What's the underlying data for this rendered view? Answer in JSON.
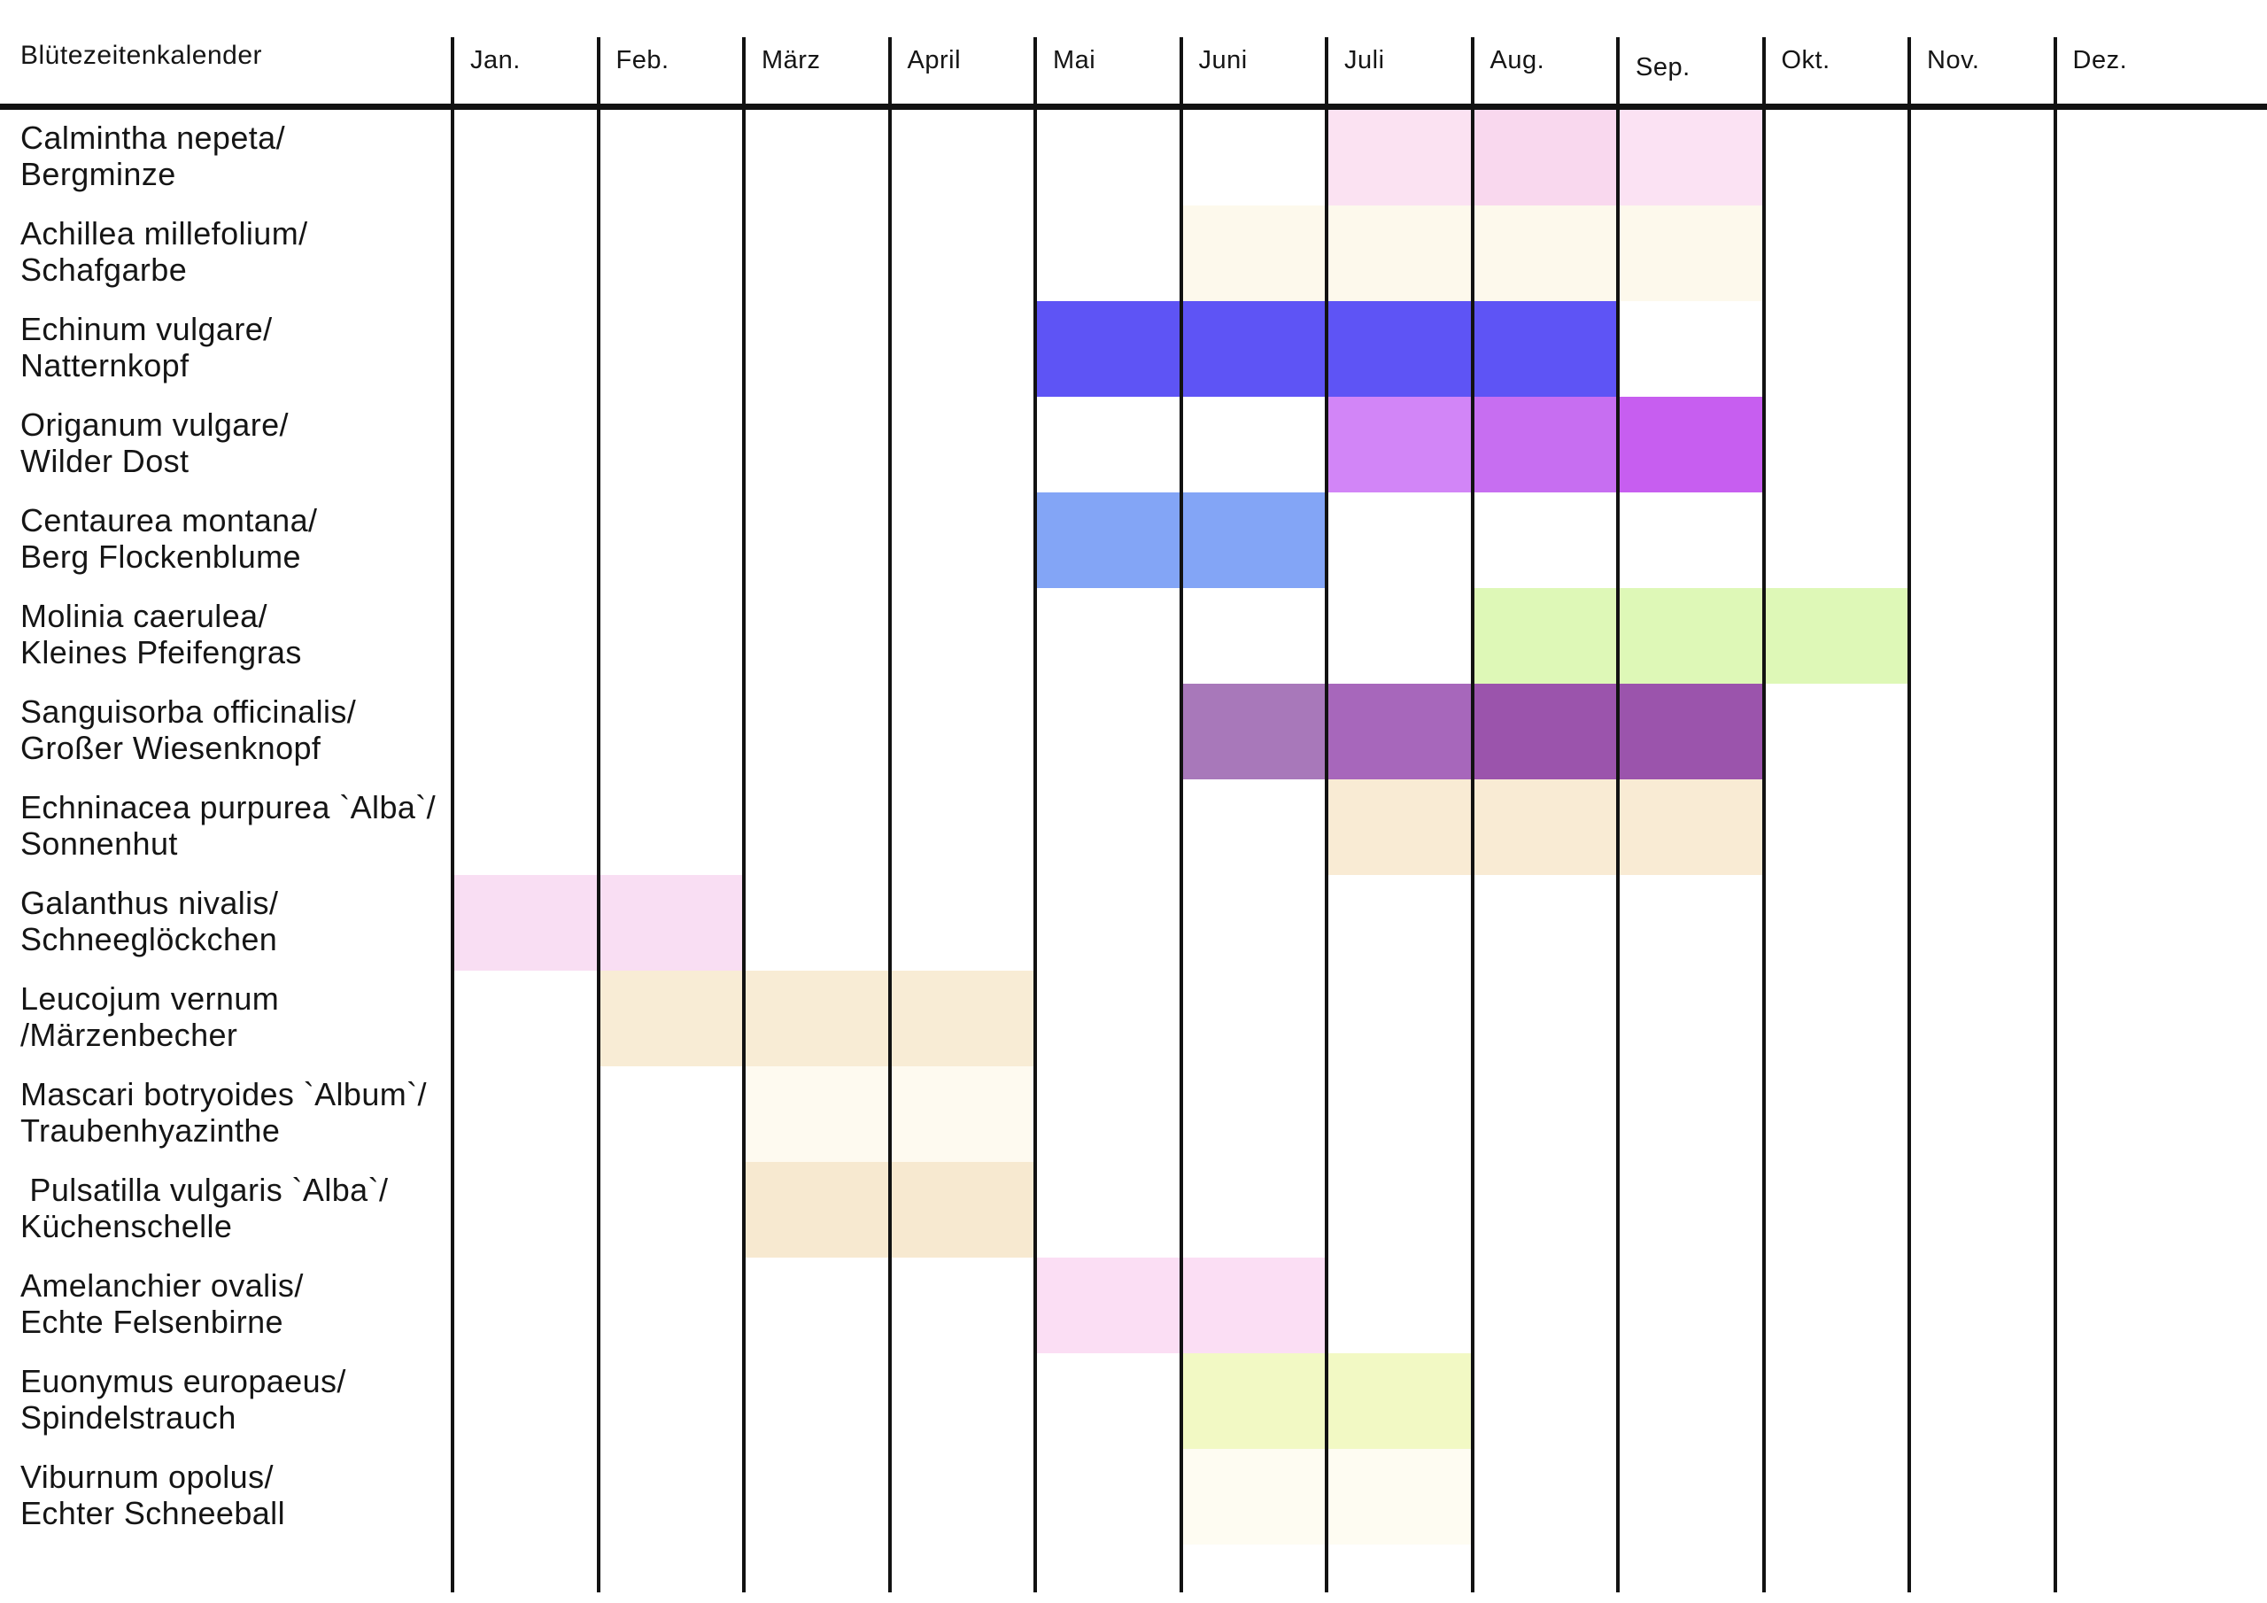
{
  "header": {
    "title": "Blütezeitenkalender",
    "months": [
      "Jan.",
      "Feb.",
      "März",
      "April",
      "Mai",
      "Juni",
      "Juli",
      "Aug.",
      "Sep.",
      "Okt.",
      "Nov.",
      "Dez."
    ]
  },
  "chart_data": {
    "type": "table",
    "title": "Blütezeitenkalender",
    "x_categories": [
      "Jan.",
      "Feb.",
      "März",
      "April",
      "Mai",
      "Juni",
      "Juli",
      "Aug.",
      "Sep.",
      "Okt.",
      "Nov.",
      "Dez."
    ],
    "legend": "none",
    "grid": "vertical-month-lines",
    "rows": [
      {
        "label_lines": [
          "Calmintha nepeta/",
          "Bergminze"
        ],
        "blooms": [
          {
            "month": "Juli",
            "color": "#fbe2f2"
          },
          {
            "month": "Aug.",
            "color": "#f9d8ee"
          },
          {
            "month": "Sep.",
            "color": "#fbe2f3"
          }
        ]
      },
      {
        "label_lines": [
          "Achillea millefolium/",
          "Schafgarbe"
        ],
        "blooms": [
          {
            "month": "Juni",
            "color": "#fdf9ec"
          },
          {
            "month": "Juli",
            "color": "#fdf9ec"
          },
          {
            "month": "Aug.",
            "color": "#fdf9ec"
          },
          {
            "month": "Sep.",
            "color": "#fdf9ec"
          }
        ]
      },
      {
        "label_lines": [
          "Echinum vulgare/",
          "Natternkopf"
        ],
        "blooms": [
          {
            "month": "Mai",
            "color": "#5e54f5"
          },
          {
            "month": "Juni",
            "color": "#5e54f5"
          },
          {
            "month": "Juli",
            "color": "#5e54f5"
          },
          {
            "month": "Aug.",
            "color": "#5e54f5"
          }
        ]
      },
      {
        "label_lines": [
          "Origanum vulgare/",
          "Wilder Dost"
        ],
        "blooms": [
          {
            "month": "Juli",
            "color": "#d285f7"
          },
          {
            "month": "Aug.",
            "color": "#c76ef1"
          },
          {
            "month": "Sep.",
            "color": "#c75ef0"
          }
        ]
      },
      {
        "label_lines": [
          "Centaurea montana/",
          "Berg Flockenblume"
        ],
        "blooms": [
          {
            "month": "Mai",
            "color": "#83a5f6"
          },
          {
            "month": "Juni",
            "color": "#83a5f6"
          }
        ]
      },
      {
        "label_lines": [
          "Molinia caerulea/",
          "Kleines Pfeifengras"
        ],
        "blooms": [
          {
            "month": "Aug.",
            "color": "#def8b7"
          },
          {
            "month": "Sep.",
            "color": "#def8b7"
          },
          {
            "month": "Okt.",
            "color": "#def8b7"
          }
        ]
      },
      {
        "label_lines": [
          "Sanguisorba officinalis/",
          "Großer Wiesenknopf"
        ],
        "blooms": [
          {
            "month": "Juni",
            "color": "#a878ba"
          },
          {
            "month": "Juli",
            "color": "#a767bb"
          },
          {
            "month": "Aug.",
            "color": "#9b54ac"
          },
          {
            "month": "Sep.",
            "color": "#9b54ac"
          }
        ]
      },
      {
        "label_lines": [
          "Echninacea purpurea `Alba`/",
          "Sonnenhut"
        ],
        "blooms": [
          {
            "month": "Juli",
            "color": "#f9ebd4"
          },
          {
            "month": "Aug.",
            "color": "#f9ebd4"
          },
          {
            "month": "Sep.",
            "color": "#f9ebd4"
          }
        ]
      },
      {
        "label_lines": [
          "Galanthus nivalis/",
          "Schneeglöckchen"
        ],
        "blooms": [
          {
            "month": "Jan.",
            "color": "#f9def3"
          },
          {
            "month": "Feb.",
            "color": "#f9def3"
          }
        ]
      },
      {
        "label_lines": [
          "Leucojum vernum /Märzenbecher"
        ],
        "blooms": [
          {
            "month": "Feb.",
            "color": "#f8ecd5"
          },
          {
            "month": "März",
            "color": "#f8ecd5"
          },
          {
            "month": "April",
            "color": "#f8ecd5"
          }
        ]
      },
      {
        "label_lines": [
          "Mascari botryoides `Album`/",
          "Traubenhyazinthe"
        ],
        "blooms": [
          {
            "month": "März",
            "color": "#fefaf0"
          },
          {
            "month": "April",
            "color": "#fefaf0"
          }
        ]
      },
      {
        "label_lines": [
          " Pulsatilla vulgaris `Alba`/",
          "Küchenschelle"
        ],
        "blooms": [
          {
            "month": "März",
            "color": "#f7e9d0"
          },
          {
            "month": "April",
            "color": "#f7e9d0"
          }
        ]
      },
      {
        "label_lines": [
          "Amelanchier ovalis/",
          "Echte Felsenbirne"
        ],
        "blooms": [
          {
            "month": "Mai",
            "color": "#fbdef4"
          },
          {
            "month": "Juni",
            "color": "#fbdef4"
          }
        ]
      },
      {
        "label_lines": [
          "Euonymus europaeus/",
          "Spindelstrauch"
        ],
        "blooms": [
          {
            "month": "Juni",
            "color": "#f2f9c4"
          },
          {
            "month": "Juli",
            "color": "#f2f9c4"
          }
        ]
      },
      {
        "label_lines": [
          "Viburnum opolus/",
          "Echter Schneeball"
        ],
        "blooms": [
          {
            "month": "Juni",
            "color": "#fefcf2"
          },
          {
            "month": "Juli",
            "color": "#fefcf2"
          }
        ]
      }
    ]
  },
  "colors": {
    "grid_line": "#121212",
    "background": "#ffffff",
    "text": "#151515"
  }
}
